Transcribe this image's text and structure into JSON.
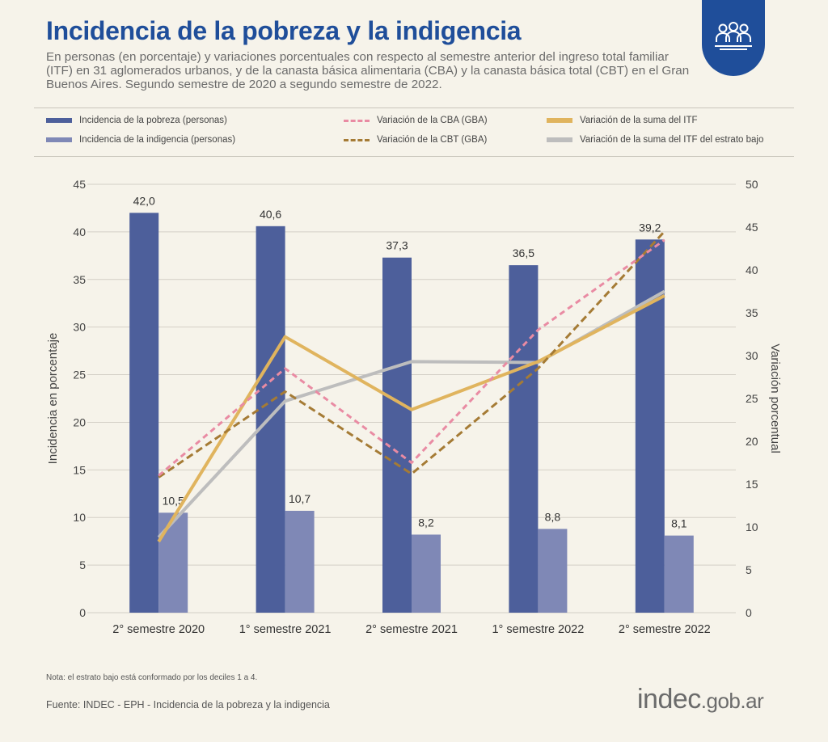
{
  "header": {
    "title": "Incidencia de la pobreza y la indigencia",
    "subtitle": "En personas (en porcentaje) y variaciones porcentuales con respecto al semestre anterior del ingreso total familiar (ITF) en 31 aglomerados urbanos, y de la canasta básica alimentaria (CBA) y la canasta básica total (CBT) en el Gran Buenos Aires. Segundo semestre de 2020 a segundo semestre de 2022.",
    "badge_icon": "people-group-icon"
  },
  "legend": [
    {
      "label": "Incidencia de la pobreza (personas)",
      "style": "solid",
      "color": "#4d5f9b"
    },
    {
      "label": "Incidencia de la indigencia (personas)",
      "style": "solid",
      "color": "#7f88b6"
    },
    {
      "label": "Variación de la CBA (GBA)",
      "style": "dashed",
      "color": "#e98ba3"
    },
    {
      "label": "Variación de la CBT (GBA)",
      "style": "dashed",
      "color": "#a57b35"
    },
    {
      "label": "Variación de la suma del ITF",
      "style": "solid",
      "color": "#e0b45e"
    },
    {
      "label": "Variación de la suma del ITF del estrato bajo",
      "style": "solid",
      "color": "#bdbdbd"
    }
  ],
  "chart_data": {
    "type": "bar",
    "categories": [
      "2° semestre 2020",
      "1° semestre 2021",
      "2° semestre 2021",
      "1° semestre 2022",
      "2° semestre 2022"
    ],
    "ylabel": "Incidencia en porcentaje",
    "ylim": [
      0,
      45
    ],
    "yticks": [
      "0",
      "5",
      "10",
      "15",
      "20",
      "25",
      "30",
      "35",
      "40",
      "45"
    ],
    "y2label": "Variación porcentual",
    "y2lim": [
      0,
      50
    ],
    "y2ticks": [
      "0",
      "5",
      "10",
      "15",
      "20",
      "25",
      "30",
      "35",
      "40",
      "45",
      "50"
    ],
    "grid": true,
    "bar_series": [
      {
        "name": "Incidencia de la pobreza (personas)",
        "axis": "left",
        "color": "#4d5f9b",
        "values": [
          42.0,
          40.6,
          37.3,
          36.5,
          39.2
        ],
        "value_labels": [
          "42,0",
          "40,6",
          "37,3",
          "36,5",
          "39,2"
        ]
      },
      {
        "name": "Incidencia de la indigencia (personas)",
        "axis": "left",
        "color": "#7f88b6",
        "values": [
          10.5,
          10.7,
          8.2,
          8.8,
          8.1
        ],
        "value_labels": [
          "10,5",
          "10,7",
          "8,2",
          "8,8",
          "8,1"
        ]
      }
    ],
    "line_series": [
      {
        "name": "Variación de la CBA (GBA)",
        "axis": "right",
        "style": "dashed",
        "color": "#e98ba3",
        "values": [
          16.0,
          28.5,
          17.5,
          33.0,
          43.5
        ]
      },
      {
        "name": "Variación de la CBT (GBA)",
        "axis": "right",
        "style": "dashed",
        "color": "#a57b35",
        "values": [
          15.8,
          25.8,
          16.2,
          28.5,
          44.5
        ]
      },
      {
        "name": "Variación de la suma del ITF",
        "axis": "right",
        "style": "solid",
        "color": "#e0b45e",
        "values": [
          8.3,
          32.2,
          23.7,
          29.3,
          37.0
        ]
      },
      {
        "name": "Variación de la suma del ITF del estrato bajo",
        "axis": "right",
        "style": "solid",
        "color": "#bdbdbd",
        "values": [
          8.8,
          24.7,
          29.3,
          29.2,
          37.5
        ]
      }
    ]
  },
  "footer": {
    "note": "Nota: el estrato bajo está conformado por los deciles 1 a 4.",
    "source": "Fuente: INDEC - EPH - Incidencia de la pobreza y la indigencia",
    "brand_main": "indec",
    "brand_suffix": ".gob.ar"
  }
}
